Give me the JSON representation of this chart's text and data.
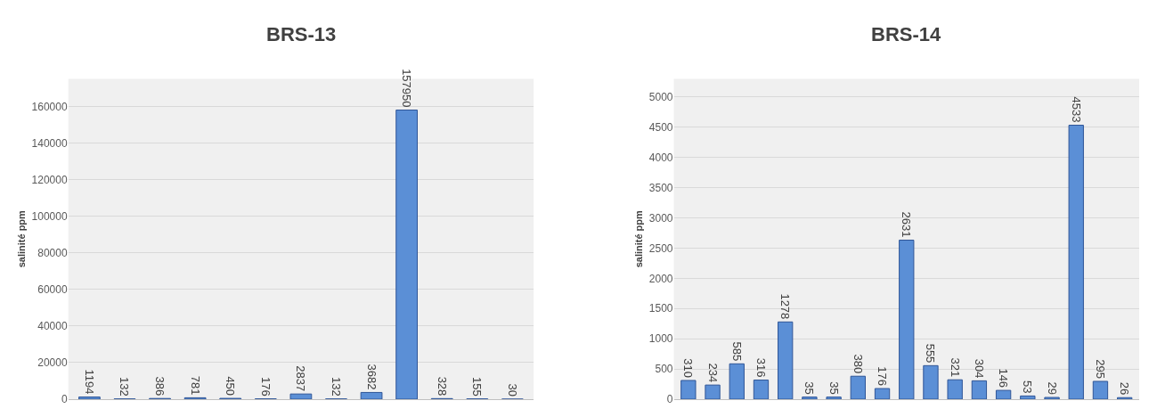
{
  "chart_data": [
    {
      "type": "bar",
      "title": "BRS-13",
      "ylabel": "salinité ppm",
      "categories": [
        null,
        null,
        null,
        null,
        null,
        null,
        null,
        null,
        null,
        null,
        null,
        null,
        null
      ],
      "series": [
        {
          "color": "#5b8fd6",
          "values": [
            1194,
            132,
            386,
            781,
            450,
            176,
            2837,
            132,
            3682,
            157950,
            328,
            155,
            30
          ]
        }
      ],
      "ylim": [
        0,
        175000
      ],
      "yticks": [
        0,
        20000,
        40000,
        60000,
        80000,
        100000,
        120000,
        140000,
        160000
      ],
      "grid": "y",
      "data_labels": true,
      "tick_labels": "y"
    },
    {
      "type": "bar",
      "title": "BRS-14",
      "ylabel": "salinité ppm",
      "categories": [
        null,
        null,
        null,
        null,
        null,
        null,
        null,
        null,
        null,
        null,
        null,
        null,
        null,
        null,
        null,
        null,
        null,
        null,
        null
      ],
      "series": [
        {
          "color": "#5b8fd6",
          "values": [
            310,
            234,
            585,
            316,
            1278,
            35,
            35,
            380,
            176,
            2631,
            555,
            321,
            304,
            146,
            53,
            29,
            4533,
            295,
            26
          ]
        }
      ],
      "ylim": [
        0,
        5300
      ],
      "yticks": [
        0,
        500,
        1000,
        1500,
        2000,
        2500,
        3000,
        3500,
        4000,
        4500,
        5000
      ],
      "grid": "y",
      "data_labels": true,
      "tick_labels": "y"
    }
  ]
}
